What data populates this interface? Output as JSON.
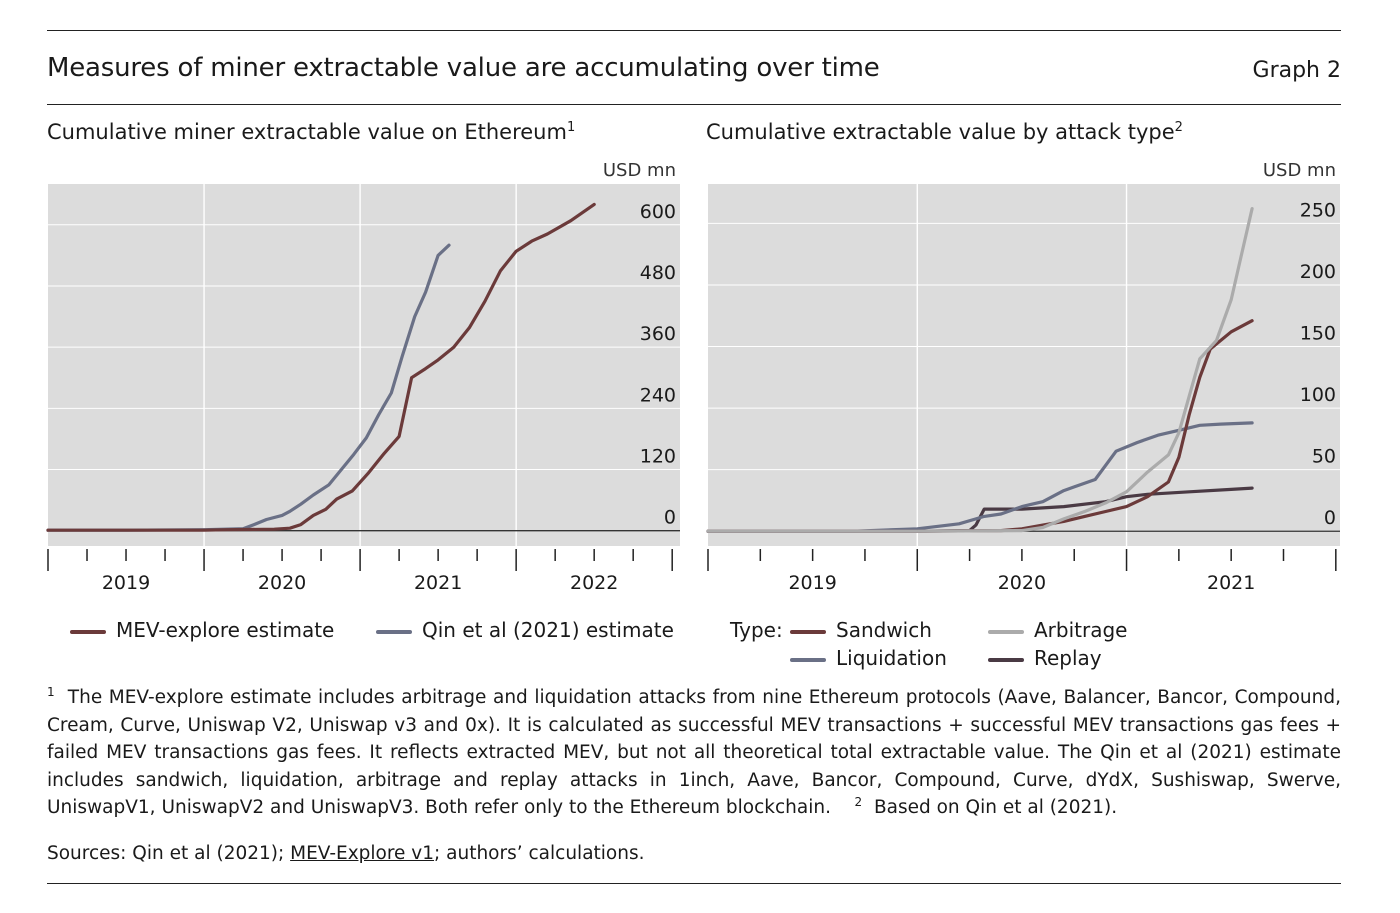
{
  "header": {
    "title": "Measures of miner extractable value are accumulating over time",
    "graph_label": "Graph 2"
  },
  "chart_data": [
    {
      "type": "line",
      "title": "Cumulative miner extractable value on Ethereum",
      "title_footnote": "1",
      "ylabel": "USD mn",
      "ylim": [
        -30,
        680
      ],
      "yticks": [
        0,
        120,
        240,
        360,
        480,
        600
      ],
      "xlim": [
        2018.5,
        2022.55
      ],
      "x_year_labels": [
        "2019",
        "2020",
        "2021",
        "2022"
      ],
      "x_year_positions": [
        2019,
        2020,
        2021,
        2022
      ],
      "x_major_ticks": [
        2018.5,
        2019.5,
        2020.5,
        2021.5
      ],
      "grid": true,
      "legend_position": "bottom",
      "series": [
        {
          "name": "MEV-explore estimate",
          "color": "#6b3a3a",
          "points": [
            [
              2018.5,
              1
            ],
            [
              2019.0,
              1
            ],
            [
              2019.5,
              1
            ],
            [
              2019.65,
              2
            ],
            [
              2019.95,
              3
            ],
            [
              2020.05,
              5
            ],
            [
              2020.12,
              12
            ],
            [
              2020.2,
              30
            ],
            [
              2020.28,
              42
            ],
            [
              2020.35,
              62
            ],
            [
              2020.45,
              78
            ],
            [
              2020.55,
              112
            ],
            [
              2020.65,
              150
            ],
            [
              2020.75,
              185
            ],
            [
              2020.83,
              300
            ],
            [
              2020.92,
              318
            ],
            [
              2021.0,
              335
            ],
            [
              2021.1,
              360
            ],
            [
              2021.2,
              398
            ],
            [
              2021.3,
              450
            ],
            [
              2021.4,
              510
            ],
            [
              2021.5,
              548
            ],
            [
              2021.6,
              568
            ],
            [
              2021.7,
              582
            ],
            [
              2021.85,
              608
            ],
            [
              2022.0,
              640
            ]
          ]
        },
        {
          "name": "Qin et al (2021) estimate",
          "color": "#6a7086",
          "points": [
            [
              2018.5,
              1
            ],
            [
              2019.0,
              1
            ],
            [
              2019.5,
              2
            ],
            [
              2019.75,
              4
            ],
            [
              2019.82,
              12
            ],
            [
              2019.9,
              22
            ],
            [
              2020.0,
              30
            ],
            [
              2020.05,
              38
            ],
            [
              2020.12,
              52
            ],
            [
              2020.2,
              70
            ],
            [
              2020.3,
              90
            ],
            [
              2020.38,
              120
            ],
            [
              2020.46,
              150
            ],
            [
              2020.54,
              182
            ],
            [
              2020.62,
              228
            ],
            [
              2020.7,
              270
            ],
            [
              2020.77,
              342
            ],
            [
              2020.85,
              420
            ],
            [
              2020.92,
              468
            ],
            [
              2021.0,
              540
            ],
            [
              2021.07,
              560
            ]
          ]
        }
      ]
    },
    {
      "type": "line",
      "title": "Cumulative extractable value by attack type",
      "title_footnote": "2",
      "ylabel": "USD mn",
      "ylim": [
        -12,
        282
      ],
      "yticks": [
        0,
        50,
        100,
        150,
        200,
        250
      ],
      "xlim": [
        2018.5,
        2021.52
      ],
      "x_year_labels": [
        "2019",
        "2020",
        "2021"
      ],
      "x_year_positions": [
        2019,
        2020,
        2021
      ],
      "x_major_ticks": [
        2018.5,
        2019.5,
        2020.5
      ],
      "grid": true,
      "legend_position": "bottom",
      "legend_prefix": "Type:",
      "series": [
        {
          "name": "Sandwich",
          "color": "#6b3a3a",
          "points": [
            [
              2018.5,
              0
            ],
            [
              2019.5,
              0
            ],
            [
              2019.9,
              0.5
            ],
            [
              2020.0,
              2
            ],
            [
              2020.1,
              5
            ],
            [
              2020.2,
              8
            ],
            [
              2020.3,
              12
            ],
            [
              2020.4,
              16
            ],
            [
              2020.5,
              20
            ],
            [
              2020.6,
              28
            ],
            [
              2020.7,
              40
            ],
            [
              2020.75,
              60
            ],
            [
              2020.8,
              95
            ],
            [
              2020.85,
              125
            ],
            [
              2020.9,
              148
            ],
            [
              2021.0,
              162
            ],
            [
              2021.1,
              171
            ]
          ]
        },
        {
          "name": "Arbitrage",
          "color": "#ababab",
          "points": [
            [
              2018.5,
              0
            ],
            [
              2019.5,
              0
            ],
            [
              2020.0,
              0.5
            ],
            [
              2020.1,
              3
            ],
            [
              2020.2,
              10
            ],
            [
              2020.3,
              16
            ],
            [
              2020.4,
              23
            ],
            [
              2020.5,
              32
            ],
            [
              2020.6,
              48
            ],
            [
              2020.7,
              62
            ],
            [
              2020.75,
              80
            ],
            [
              2020.8,
              110
            ],
            [
              2020.85,
              140
            ],
            [
              2020.93,
              155
            ],
            [
              2021.0,
              188
            ],
            [
              2021.05,
              225
            ],
            [
              2021.1,
              262
            ]
          ]
        },
        {
          "name": "Liquidation",
          "color": "#6a7086",
          "points": [
            [
              2018.5,
              0
            ],
            [
              2019.2,
              0
            ],
            [
              2019.5,
              2
            ],
            [
              2019.7,
              6
            ],
            [
              2019.78,
              10
            ],
            [
              2019.82,
              12
            ],
            [
              2019.9,
              14
            ],
            [
              2020.0,
              20
            ],
            [
              2020.05,
              22
            ],
            [
              2020.1,
              24
            ],
            [
              2020.2,
              33
            ],
            [
              2020.25,
              36
            ],
            [
              2020.35,
              42
            ],
            [
              2020.45,
              65
            ],
            [
              2020.55,
              72
            ],
            [
              2020.65,
              78
            ],
            [
              2020.75,
              82
            ],
            [
              2020.85,
              86
            ],
            [
              2020.95,
              87
            ],
            [
              2021.1,
              88
            ]
          ]
        },
        {
          "name": "Replay",
          "color": "#4a3a44",
          "points": [
            [
              2018.5,
              0
            ],
            [
              2019.5,
              0
            ],
            [
              2019.75,
              0.5
            ],
            [
              2019.78,
              5
            ],
            [
              2019.82,
              18
            ],
            [
              2019.9,
              18
            ],
            [
              2020.0,
              18
            ],
            [
              2020.2,
              20
            ],
            [
              2020.4,
              24
            ],
            [
              2020.5,
              28
            ],
            [
              2020.6,
              30
            ],
            [
              2020.8,
              32
            ],
            [
              2021.0,
              34
            ],
            [
              2021.1,
              35
            ]
          ]
        }
      ]
    }
  ],
  "legend_left": {
    "items": [
      {
        "label": "MEV-explore estimate",
        "color": "#6b3a3a"
      },
      {
        "label": "Qin et al (2021) estimate",
        "color": "#6a7086"
      }
    ]
  },
  "legend_right": {
    "prefix": "Type:",
    "items": [
      {
        "label": "Sandwich",
        "color": "#6b3a3a"
      },
      {
        "label": "Arbitrage",
        "color": "#ababab"
      },
      {
        "label": "Liquidation",
        "color": "#6a7086"
      },
      {
        "label": "Replay",
        "color": "#4a3a44"
      }
    ]
  },
  "footnotes": {
    "n1_mark": "1",
    "n1_text": "The MEV-explore estimate includes arbitrage and liquidation attacks from nine Ethereum protocols (Aave, Balancer, Bancor, Compound, Cream, Curve, Uniswap V2, Uniswap v3 and 0x). It is calculated as successful MEV transactions + successful MEV transactions gas fees + failed MEV transactions gas fees. It reflects extracted MEV, but not all theoretical total extractable value. The Qin et al (2021) estimate includes sandwich, liquidation, arbitrage and replay attacks in 1inch, Aave, Bancor, Compound, Curve, dYdX, Sushiswap, Swerve, UniswapV1, UniswapV2 and UniswapV3. Both refer only to the Ethereum blockchain.",
    "n2_mark": "2",
    "n2_text": "Based on Qin et al (2021)."
  },
  "sources": {
    "prefix": "Sources: Qin et al (2021); ",
    "link": "MEV-Explore v1",
    "suffix": "; authors’ calculations."
  }
}
